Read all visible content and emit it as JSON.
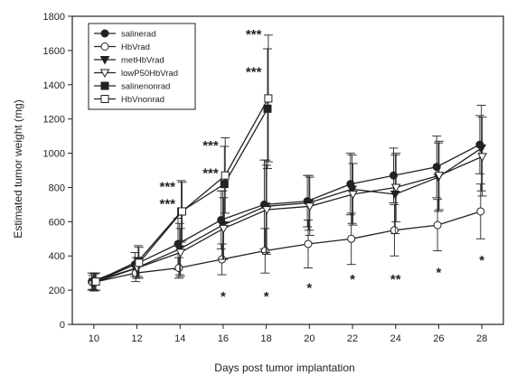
{
  "chart_data": {
    "type": "line",
    "xlabel": "Days post tumor implantation",
    "ylabel": "Estimated tumor weight (mg)",
    "xlim": [
      9,
      29
    ],
    "ylim": [
      0,
      1800
    ],
    "xticks": [
      10,
      12,
      14,
      16,
      18,
      20,
      22,
      24,
      26,
      28
    ],
    "yticks": [
      0,
      200,
      400,
      600,
      800,
      1000,
      1200,
      1400,
      1600,
      1800
    ],
    "grid": false,
    "legend": "top-left",
    "colors": {
      "line": "#222222",
      "bg": "#ffffff"
    },
    "series": [
      {
        "name": "salinerad",
        "marker": "circle-filled",
        "x": [
          10,
          12,
          14,
          16,
          18,
          20,
          22,
          24,
          26,
          28
        ],
        "y": [
          250,
          350,
          470,
          610,
          700,
          720,
          820,
          870,
          920,
          1050
        ],
        "err": [
          50,
          70,
          150,
          170,
          260,
          150,
          180,
          160,
          180,
          170
        ]
      },
      {
        "name": "HbVrad",
        "marker": "circle-open",
        "x": [
          10,
          12,
          14,
          16,
          18,
          20,
          22,
          24,
          26,
          28
        ],
        "y": [
          245,
          300,
          330,
          380,
          430,
          470,
          500,
          550,
          580,
          660
        ],
        "err": [
          40,
          50,
          60,
          90,
          130,
          140,
          150,
          150,
          150,
          160
        ]
      },
      {
        "name": "metHbVrad",
        "marker": "triangle-down-filled",
        "x": [
          10,
          12,
          14,
          16,
          18,
          20,
          22,
          24,
          26,
          28
        ],
        "y": [
          250,
          330,
          440,
          580,
          690,
          710,
          790,
          760,
          860,
          1030
        ],
        "err": [
          50,
          60,
          150,
          200,
          270,
          160,
          200,
          230,
          200,
          250
        ]
      },
      {
        "name": "lowP50HbVrad",
        "marker": "triangle-down-open",
        "x": [
          10,
          12,
          14,
          16,
          18,
          20,
          22,
          24,
          26,
          28
        ],
        "y": [
          245,
          330,
          420,
          560,
          670,
          690,
          760,
          800,
          870,
          980
        ],
        "err": [
          50,
          60,
          140,
          180,
          260,
          170,
          180,
          200,
          200,
          230
        ]
      },
      {
        "name": "salinenonrad",
        "marker": "square-filled",
        "x": [
          10,
          12,
          14,
          16,
          18
        ],
        "y": [
          250,
          370,
          660,
          820,
          1260
        ],
        "err": [
          50,
          90,
          180,
          220,
          350
        ]
      },
      {
        "name": "HbVnonrad",
        "marker": "square-open",
        "x": [
          10,
          12,
          14,
          16,
          18
        ],
        "y": [
          250,
          360,
          660,
          870,
          1320
        ],
        "err": [
          50,
          90,
          170,
          220,
          370
        ]
      }
    ],
    "annotations": [
      {
        "text": "***",
        "x": 14,
        "y": 810
      },
      {
        "text": "***",
        "x": 14,
        "y": 710
      },
      {
        "text": "***",
        "x": 16,
        "y": 1050
      },
      {
        "text": "***",
        "x": 16,
        "y": 890
      },
      {
        "text": "***",
        "x": 18,
        "y": 1700
      },
      {
        "text": "***",
        "x": 18,
        "y": 1480
      },
      {
        "text": "*",
        "x": 16,
        "y": 170
      },
      {
        "text": "*",
        "x": 18,
        "y": 170
      },
      {
        "text": "*",
        "x": 20,
        "y": 220
      },
      {
        "text": "*",
        "x": 22,
        "y": 270
      },
      {
        "text": "**",
        "x": 24,
        "y": 270
      },
      {
        "text": "*",
        "x": 26,
        "y": 310
      },
      {
        "text": "*",
        "x": 28,
        "y": 380
      }
    ]
  }
}
